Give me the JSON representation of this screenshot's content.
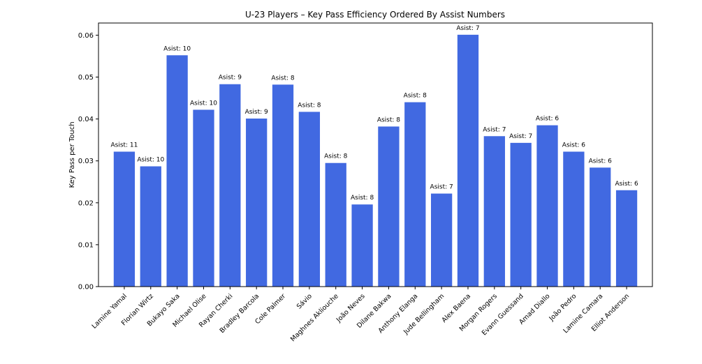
{
  "chart_data": {
    "type": "bar",
    "title": "U-23 Players – Key Pass Efficiency Ordered By Assist Numbers",
    "xlabel": "",
    "ylabel": "Key Pass per Touch",
    "ylim": [
      0,
      0.0629
    ],
    "yticks": [
      "0.00",
      "0.01",
      "0.02",
      "0.03",
      "0.04",
      "0.05",
      "0.06"
    ],
    "grid": false,
    "bar_color": "#4169E1",
    "categories": [
      "Lamine Yamal",
      "Florian Wirtz",
      "Bukayo Saka",
      "Michael Olise",
      "Rayan Cherki",
      "Bradley Barcola",
      "Cole Palmer",
      "Sávio",
      "Maghnes Akliouche",
      "João Neves",
      "Dilane Bakwa",
      "Anthony Elanga",
      "Jude Bellingham",
      "Alex Baena",
      "Morgan Rogers",
      "Evann Guessand",
      "Amad Diallo",
      "João Pedro",
      "Lamine Camara",
      "Elliot Anderson"
    ],
    "values": [
      0.0322,
      0.0287,
      0.0552,
      0.0422,
      0.0483,
      0.0401,
      0.0482,
      0.0417,
      0.0295,
      0.0196,
      0.0382,
      0.044,
      0.0222,
      0.0601,
      0.0359,
      0.0343,
      0.0385,
      0.0322,
      0.0284,
      0.023
    ],
    "bar_labels": [
      "Asist: 11",
      "Asist: 10",
      "Asist: 10",
      "Asist: 10",
      "Asist: 9",
      "Asist: 9",
      "Asist: 8",
      "Asist: 8",
      "Asist: 8",
      "Asist: 8",
      "Asist: 8",
      "Asist: 8",
      "Asist: 7",
      "Asist: 7",
      "Asist: 7",
      "Asist: 7",
      "Asist: 6",
      "Asist: 6",
      "Asist: 6",
      "Asist: 6"
    ]
  }
}
